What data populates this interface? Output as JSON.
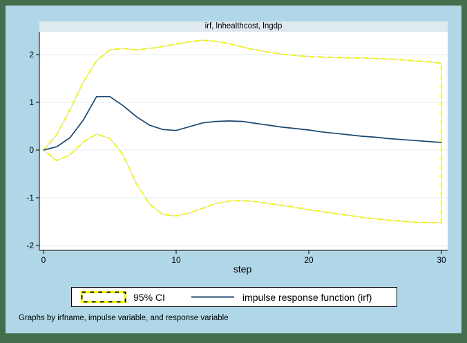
{
  "title": "irf, lnhealthcost, lngdp",
  "x_axis_title": "step",
  "caption": "Graphs by irfname, impulse variable, and response variable",
  "legend": {
    "ci_label": "95% CI",
    "irf_label": "impulse response function (irf)"
  },
  "colors": {
    "frame_green": "#446e4c",
    "canvas_blue": "#afd7e7",
    "title_strip": "#dfe9f0",
    "plot_bg": "#ffffff",
    "gridline": "#e4edf1",
    "axis": "#000000",
    "ci_yellow": "#f5f500",
    "ci_underlay": "#d9dee1",
    "irf_navy": "#1a476f"
  },
  "chart_data": {
    "type": "line",
    "title": "irf, lnhealthcost, lngdp",
    "xlabel": "step",
    "ylabel": "",
    "xlim": [
      0,
      30
    ],
    "ylim": [
      -2,
      2
    ],
    "x_ticks": [
      0,
      10,
      20,
      30
    ],
    "y_ticks": [
      2,
      1,
      0,
      -1,
      -2
    ],
    "grid": "horizontal",
    "legend_position": "bottom",
    "x": [
      0,
      1,
      2,
      3,
      4,
      5,
      6,
      7,
      8,
      9,
      10,
      11,
      12,
      13,
      14,
      15,
      16,
      17,
      18,
      19,
      20,
      21,
      22,
      23,
      24,
      25,
      26,
      27,
      28,
      29,
      30
    ],
    "series": [
      {
        "name": "95% CI upper",
        "style": "dashed-yellow",
        "values": [
          0,
          0.32,
          0.85,
          1.42,
          1.87,
          2.1,
          2.13,
          2.1,
          2.13,
          2.17,
          2.22,
          2.27,
          2.3,
          2.28,
          2.23,
          2.16,
          2.1,
          2.05,
          2.01,
          1.98,
          1.96,
          1.95,
          1.94,
          1.93,
          1.93,
          1.92,
          1.91,
          1.89,
          1.87,
          1.85,
          1.82
        ]
      },
      {
        "name": "95% CI lower",
        "style": "dashed-yellow",
        "values": [
          0,
          -0.22,
          -0.1,
          0.17,
          0.33,
          0.25,
          -0.1,
          -0.7,
          -1.13,
          -1.35,
          -1.38,
          -1.32,
          -1.22,
          -1.12,
          -1.07,
          -1.06,
          -1.08,
          -1.12,
          -1.16,
          -1.2,
          -1.25,
          -1.29,
          -1.33,
          -1.37,
          -1.41,
          -1.44,
          -1.47,
          -1.49,
          -1.51,
          -1.52,
          -1.52
        ]
      },
      {
        "name": "impulse response function (irf)",
        "style": "solid-navy",
        "values": [
          0,
          0.07,
          0.26,
          0.63,
          1.12,
          1.12,
          0.93,
          0.7,
          0.52,
          0.43,
          0.41,
          0.49,
          0.57,
          0.6,
          0.61,
          0.6,
          0.56,
          0.52,
          0.48,
          0.45,
          0.42,
          0.38,
          0.35,
          0.32,
          0.29,
          0.27,
          0.24,
          0.22,
          0.2,
          0.18,
          0.16
        ]
      }
    ]
  }
}
